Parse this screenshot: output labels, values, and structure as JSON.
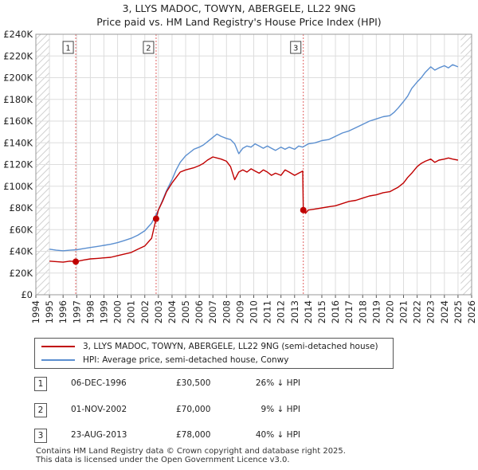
{
  "header": {
    "title_line1": "3, LLYS MADOC, TOWYN, ABERGELE, LL22 9NG",
    "title_line2": "Price paid vs. HM Land Registry's House Price Index (HPI)"
  },
  "colors": {
    "price_paid": "#c00000",
    "hpi": "#5b8fd0",
    "vline": "#e06060",
    "hatch": "#d0d0d0",
    "grid": "#dddddd"
  },
  "legend": {
    "price_label": "3, LLYS MADOC, TOWYN, ABERGELE, LL22 9NG (semi-detached house)",
    "hpi_label": "HPI: Average price, semi-detached house, Conwy"
  },
  "sales": [
    {
      "num": "1",
      "date": "06-DEC-1996",
      "price": "£30,500",
      "hpi_diff": "26% ↓ HPI"
    },
    {
      "num": "2",
      "date": "01-NOV-2002",
      "price": "£70,000",
      "hpi_diff": "9% ↓ HPI"
    },
    {
      "num": "3",
      "date": "23-AUG-2013",
      "price": "£78,000",
      "hpi_diff": "40% ↓ HPI"
    }
  ],
  "footer": {
    "line1": "Contains HM Land Registry data © Crown copyright and database right 2025.",
    "line2": "This data is licensed under the Open Government Licence v3.0."
  },
  "chart_data": {
    "type": "line",
    "title": "3, LLYS MADOC, TOWYN, ABERGELE, LL22 9NG",
    "subtitle": "Price paid vs. HM Land Registry's House Price Index (HPI)",
    "xlabel": "",
    "ylabel": "",
    "xlim": [
      1994,
      2026
    ],
    "ylim": [
      0,
      240000
    ],
    "x_ticks": [
      1994,
      1995,
      1996,
      1997,
      1998,
      1999,
      2000,
      2001,
      2002,
      2003,
      2004,
      2005,
      2006,
      2007,
      2008,
      2009,
      2010,
      2011,
      2012,
      2013,
      2014,
      2015,
      2016,
      2017,
      2018,
      2019,
      2020,
      2021,
      2022,
      2023,
      2024,
      2025,
      2026
    ],
    "y_ticks": [
      {
        "value": 0,
        "label": "£0"
      },
      {
        "value": 20000,
        "label": "£20K"
      },
      {
        "value": 40000,
        "label": "£40K"
      },
      {
        "value": 60000,
        "label": "£60K"
      },
      {
        "value": 80000,
        "label": "£80K"
      },
      {
        "value": 100000,
        "label": "£100K"
      },
      {
        "value": 120000,
        "label": "£120K"
      },
      {
        "value": 140000,
        "label": "£140K"
      },
      {
        "value": 160000,
        "label": "£160K"
      },
      {
        "value": 180000,
        "label": "£180K"
      },
      {
        "value": 200000,
        "label": "£200K"
      },
      {
        "value": 220000,
        "label": "£220K"
      },
      {
        "value": 240000,
        "label": "£240K"
      }
    ],
    "hatch_ranges": [
      [
        1994,
        1995
      ],
      [
        2025.2,
        2026
      ]
    ],
    "sale_markers": [
      {
        "label": "1",
        "x": 1996.93,
        "y": 30500
      },
      {
        "label": "2",
        "x": 2002.83,
        "y": 70000
      },
      {
        "label": "3",
        "x": 2013.64,
        "y": 78000
      }
    ],
    "series": [
      {
        "name": "3, LLYS MADOC, TOWYN, ABERGELE, LL22 9NG (semi-detached house)",
        "x": [
          1995,
          1995.5,
          1996,
          1996.5,
          1996.93,
          1997.5,
          1998,
          1998.5,
          1999,
          1999.5,
          2000,
          2000.5,
          2001,
          2001.5,
          2002,
          2002.5,
          2002.83,
          2003,
          2003.3,
          2003.6,
          2004,
          2004.3,
          2004.6,
          2005,
          2005.3,
          2005.6,
          2006,
          2006.3,
          2006.6,
          2007,
          2007.3,
          2007.6,
          2008,
          2008.3,
          2008.6,
          2008.9,
          2009.2,
          2009.5,
          2009.8,
          2010.1,
          2010.4,
          2010.7,
          2011,
          2011.3,
          2011.6,
          2012,
          2012.3,
          2012.6,
          2013,
          2013.3,
          2013.6,
          2013.64,
          2013.8,
          2014,
          2014.5,
          2015,
          2015.5,
          2016,
          2016.5,
          2017,
          2017.5,
          2018,
          2018.5,
          2019,
          2019.5,
          2020,
          2020.3,
          2020.6,
          2021,
          2021.3,
          2021.6,
          2022,
          2022.3,
          2022.6,
          2023,
          2023.3,
          2023.6,
          2024,
          2024.3,
          2024.6,
          2025
        ],
        "values": [
          31000,
          30500,
          30000,
          31000,
          30500,
          32000,
          33000,
          33500,
          34000,
          34500,
          36000,
          37500,
          39000,
          42000,
          45000,
          52000,
          70000,
          78000,
          86000,
          95000,
          103000,
          108000,
          113000,
          115000,
          116000,
          117000,
          119000,
          121000,
          124000,
          127000,
          126000,
          125000,
          123000,
          118000,
          106000,
          113000,
          115000,
          113000,
          116000,
          114000,
          112000,
          115000,
          113000,
          110000,
          112000,
          110000,
          115000,
          113000,
          110000,
          112000,
          114000,
          78000,
          75000,
          78000,
          79000,
          80000,
          81000,
          82000,
          84000,
          86000,
          87000,
          89000,
          91000,
          92000,
          94000,
          95000,
          97000,
          99000,
          103000,
          108000,
          112000,
          118000,
          121000,
          123000,
          125000,
          122000,
          124000,
          125000,
          126000,
          125000,
          124000
        ]
      },
      {
        "name": "HPI: Average price, semi-detached house, Conwy",
        "x": [
          1995,
          1995.5,
          1996,
          1996.5,
          1997,
          1997.5,
          1998,
          1998.5,
          1999,
          1999.5,
          2000,
          2000.5,
          2001,
          2001.5,
          2002,
          2002.5,
          2003,
          2003.3,
          2003.6,
          2004,
          2004.3,
          2004.6,
          2005,
          2005.3,
          2005.6,
          2006,
          2006.3,
          2006.6,
          2007,
          2007.3,
          2007.6,
          2008,
          2008.3,
          2008.6,
          2008.9,
          2009.2,
          2009.5,
          2009.8,
          2010.1,
          2010.4,
          2010.7,
          2011,
          2011.3,
          2011.6,
          2012,
          2012.3,
          2012.6,
          2013,
          2013.3,
          2013.6,
          2014,
          2014.5,
          2015,
          2015.5,
          2016,
          2016.5,
          2017,
          2017.5,
          2018,
          2018.5,
          2019,
          2019.5,
          2020,
          2020.3,
          2020.6,
          2021,
          2021.3,
          2021.6,
          2022,
          2022.3,
          2022.6,
          2023,
          2023.3,
          2023.6,
          2024,
          2024.3,
          2024.6,
          2025
        ],
        "values": [
          42000,
          41000,
          40500,
          41000,
          41500,
          42500,
          43500,
          44500,
          45500,
          46500,
          48000,
          50000,
          52000,
          55000,
          59000,
          66000,
          78000,
          87000,
          96000,
          106000,
          115000,
          122000,
          128000,
          131000,
          134000,
          136000,
          138000,
          141000,
          145000,
          148000,
          146000,
          144000,
          143000,
          139000,
          130000,
          135000,
          137000,
          136000,
          139000,
          137000,
          135000,
          137000,
          135000,
          133000,
          136000,
          134000,
          136000,
          134000,
          137000,
          136000,
          139000,
          140000,
          142000,
          143000,
          146000,
          149000,
          151000,
          154000,
          157000,
          160000,
          162000,
          164000,
          165000,
          168000,
          172000,
          178000,
          183000,
          190000,
          196000,
          200000,
          205000,
          210000,
          207000,
          209000,
          211000,
          209000,
          212000,
          210000
        ]
      }
    ]
  }
}
